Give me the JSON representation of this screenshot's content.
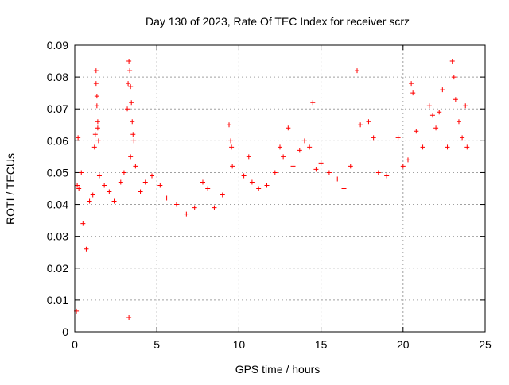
{
  "chart_data": {
    "type": "scatter",
    "title": "Day 130 of 2023, Rate Of TEC Index for receiver scrz",
    "xlabel": "GPS time / hours",
    "ylabel": "ROTI / TECUs",
    "xlim": [
      0,
      25
    ],
    "ylim": [
      0,
      0.09
    ],
    "xticks": [
      0,
      5,
      10,
      15,
      20,
      25
    ],
    "xtick_labels": [
      "0",
      "5",
      "10",
      "15",
      "20",
      "25"
    ],
    "yticks": [
      0,
      0.01,
      0.02,
      0.03,
      0.04,
      0.05,
      0.06,
      0.07,
      0.08,
      0.09
    ],
    "ytick_labels": [
      "0",
      "0.01",
      "0.02",
      "0.03",
      "0.04",
      "0.05",
      "0.06",
      "0.07",
      "0.08",
      "0.09"
    ],
    "grid": true,
    "marker": "+",
    "marker_color": "#ff0000",
    "series": [
      {
        "points": [
          [
            0.1,
            0.0065
          ],
          [
            0.15,
            0.046
          ],
          [
            0.2,
            0.061
          ],
          [
            0.25,
            0.045
          ],
          [
            0.4,
            0.05
          ],
          [
            0.5,
            0.034
          ],
          [
            0.7,
            0.026
          ],
          [
            0.9,
            0.041
          ],
          [
            1.1,
            0.043
          ],
          [
            1.2,
            0.058
          ],
          [
            1.25,
            0.062
          ],
          [
            1.3,
            0.082
          ],
          [
            1.3,
            0.078
          ],
          [
            1.35,
            0.074
          ],
          [
            1.35,
            0.071
          ],
          [
            1.4,
            0.066
          ],
          [
            1.4,
            0.064
          ],
          [
            1.45,
            0.06
          ],
          [
            1.5,
            0.049
          ],
          [
            1.8,
            0.046
          ],
          [
            2.1,
            0.044
          ],
          [
            2.4,
            0.041
          ],
          [
            2.8,
            0.047
          ],
          [
            3.0,
            0.05
          ],
          [
            3.2,
            0.07
          ],
          [
            3.25,
            0.078
          ],
          [
            3.3,
            0.085
          ],
          [
            3.35,
            0.082
          ],
          [
            3.4,
            0.077
          ],
          [
            3.45,
            0.072
          ],
          [
            3.5,
            0.066
          ],
          [
            3.55,
            0.062
          ],
          [
            3.6,
            0.06
          ],
          [
            3.4,
            0.055
          ],
          [
            3.7,
            0.052
          ],
          [
            3.3,
            0.0045
          ],
          [
            4.0,
            0.044
          ],
          [
            4.3,
            0.047
          ],
          [
            4.7,
            0.049
          ],
          [
            5.2,
            0.046
          ],
          [
            5.6,
            0.042
          ],
          [
            6.2,
            0.04
          ],
          [
            6.8,
            0.037
          ],
          [
            7.3,
            0.039
          ],
          [
            7.8,
            0.047
          ],
          [
            8.1,
            0.045
          ],
          [
            8.5,
            0.039
          ],
          [
            9.0,
            0.043
          ],
          [
            9.4,
            0.065
          ],
          [
            9.5,
            0.06
          ],
          [
            9.55,
            0.058
          ],
          [
            9.6,
            0.052
          ],
          [
            10.3,
            0.049
          ],
          [
            10.6,
            0.055
          ],
          [
            10.8,
            0.047
          ],
          [
            11.2,
            0.045
          ],
          [
            11.7,
            0.046
          ],
          [
            12.2,
            0.05
          ],
          [
            12.5,
            0.058
          ],
          [
            12.7,
            0.055
          ],
          [
            13.0,
            0.064
          ],
          [
            13.3,
            0.052
          ],
          [
            13.7,
            0.057
          ],
          [
            14.0,
            0.06
          ],
          [
            14.3,
            0.058
          ],
          [
            14.5,
            0.072
          ],
          [
            14.7,
            0.051
          ],
          [
            15.0,
            0.053
          ],
          [
            15.5,
            0.05
          ],
          [
            16.0,
            0.048
          ],
          [
            16.4,
            0.045
          ],
          [
            16.8,
            0.052
          ],
          [
            17.2,
            0.082
          ],
          [
            17.4,
            0.065
          ],
          [
            17.9,
            0.066
          ],
          [
            18.2,
            0.061
          ],
          [
            18.5,
            0.05
          ],
          [
            19.0,
            0.049
          ],
          [
            19.7,
            0.061
          ],
          [
            20.0,
            0.052
          ],
          [
            20.3,
            0.054
          ],
          [
            20.5,
            0.078
          ],
          [
            20.6,
            0.075
          ],
          [
            20.8,
            0.063
          ],
          [
            21.2,
            0.058
          ],
          [
            21.6,
            0.071
          ],
          [
            21.8,
            0.068
          ],
          [
            22.0,
            0.064
          ],
          [
            22.2,
            0.069
          ],
          [
            22.4,
            0.076
          ],
          [
            22.7,
            0.058
          ],
          [
            23.0,
            0.085
          ],
          [
            23.1,
            0.08
          ],
          [
            23.2,
            0.073
          ],
          [
            23.4,
            0.066
          ],
          [
            23.6,
            0.061
          ],
          [
            23.8,
            0.071
          ],
          [
            23.9,
            0.058
          ]
        ]
      }
    ]
  }
}
